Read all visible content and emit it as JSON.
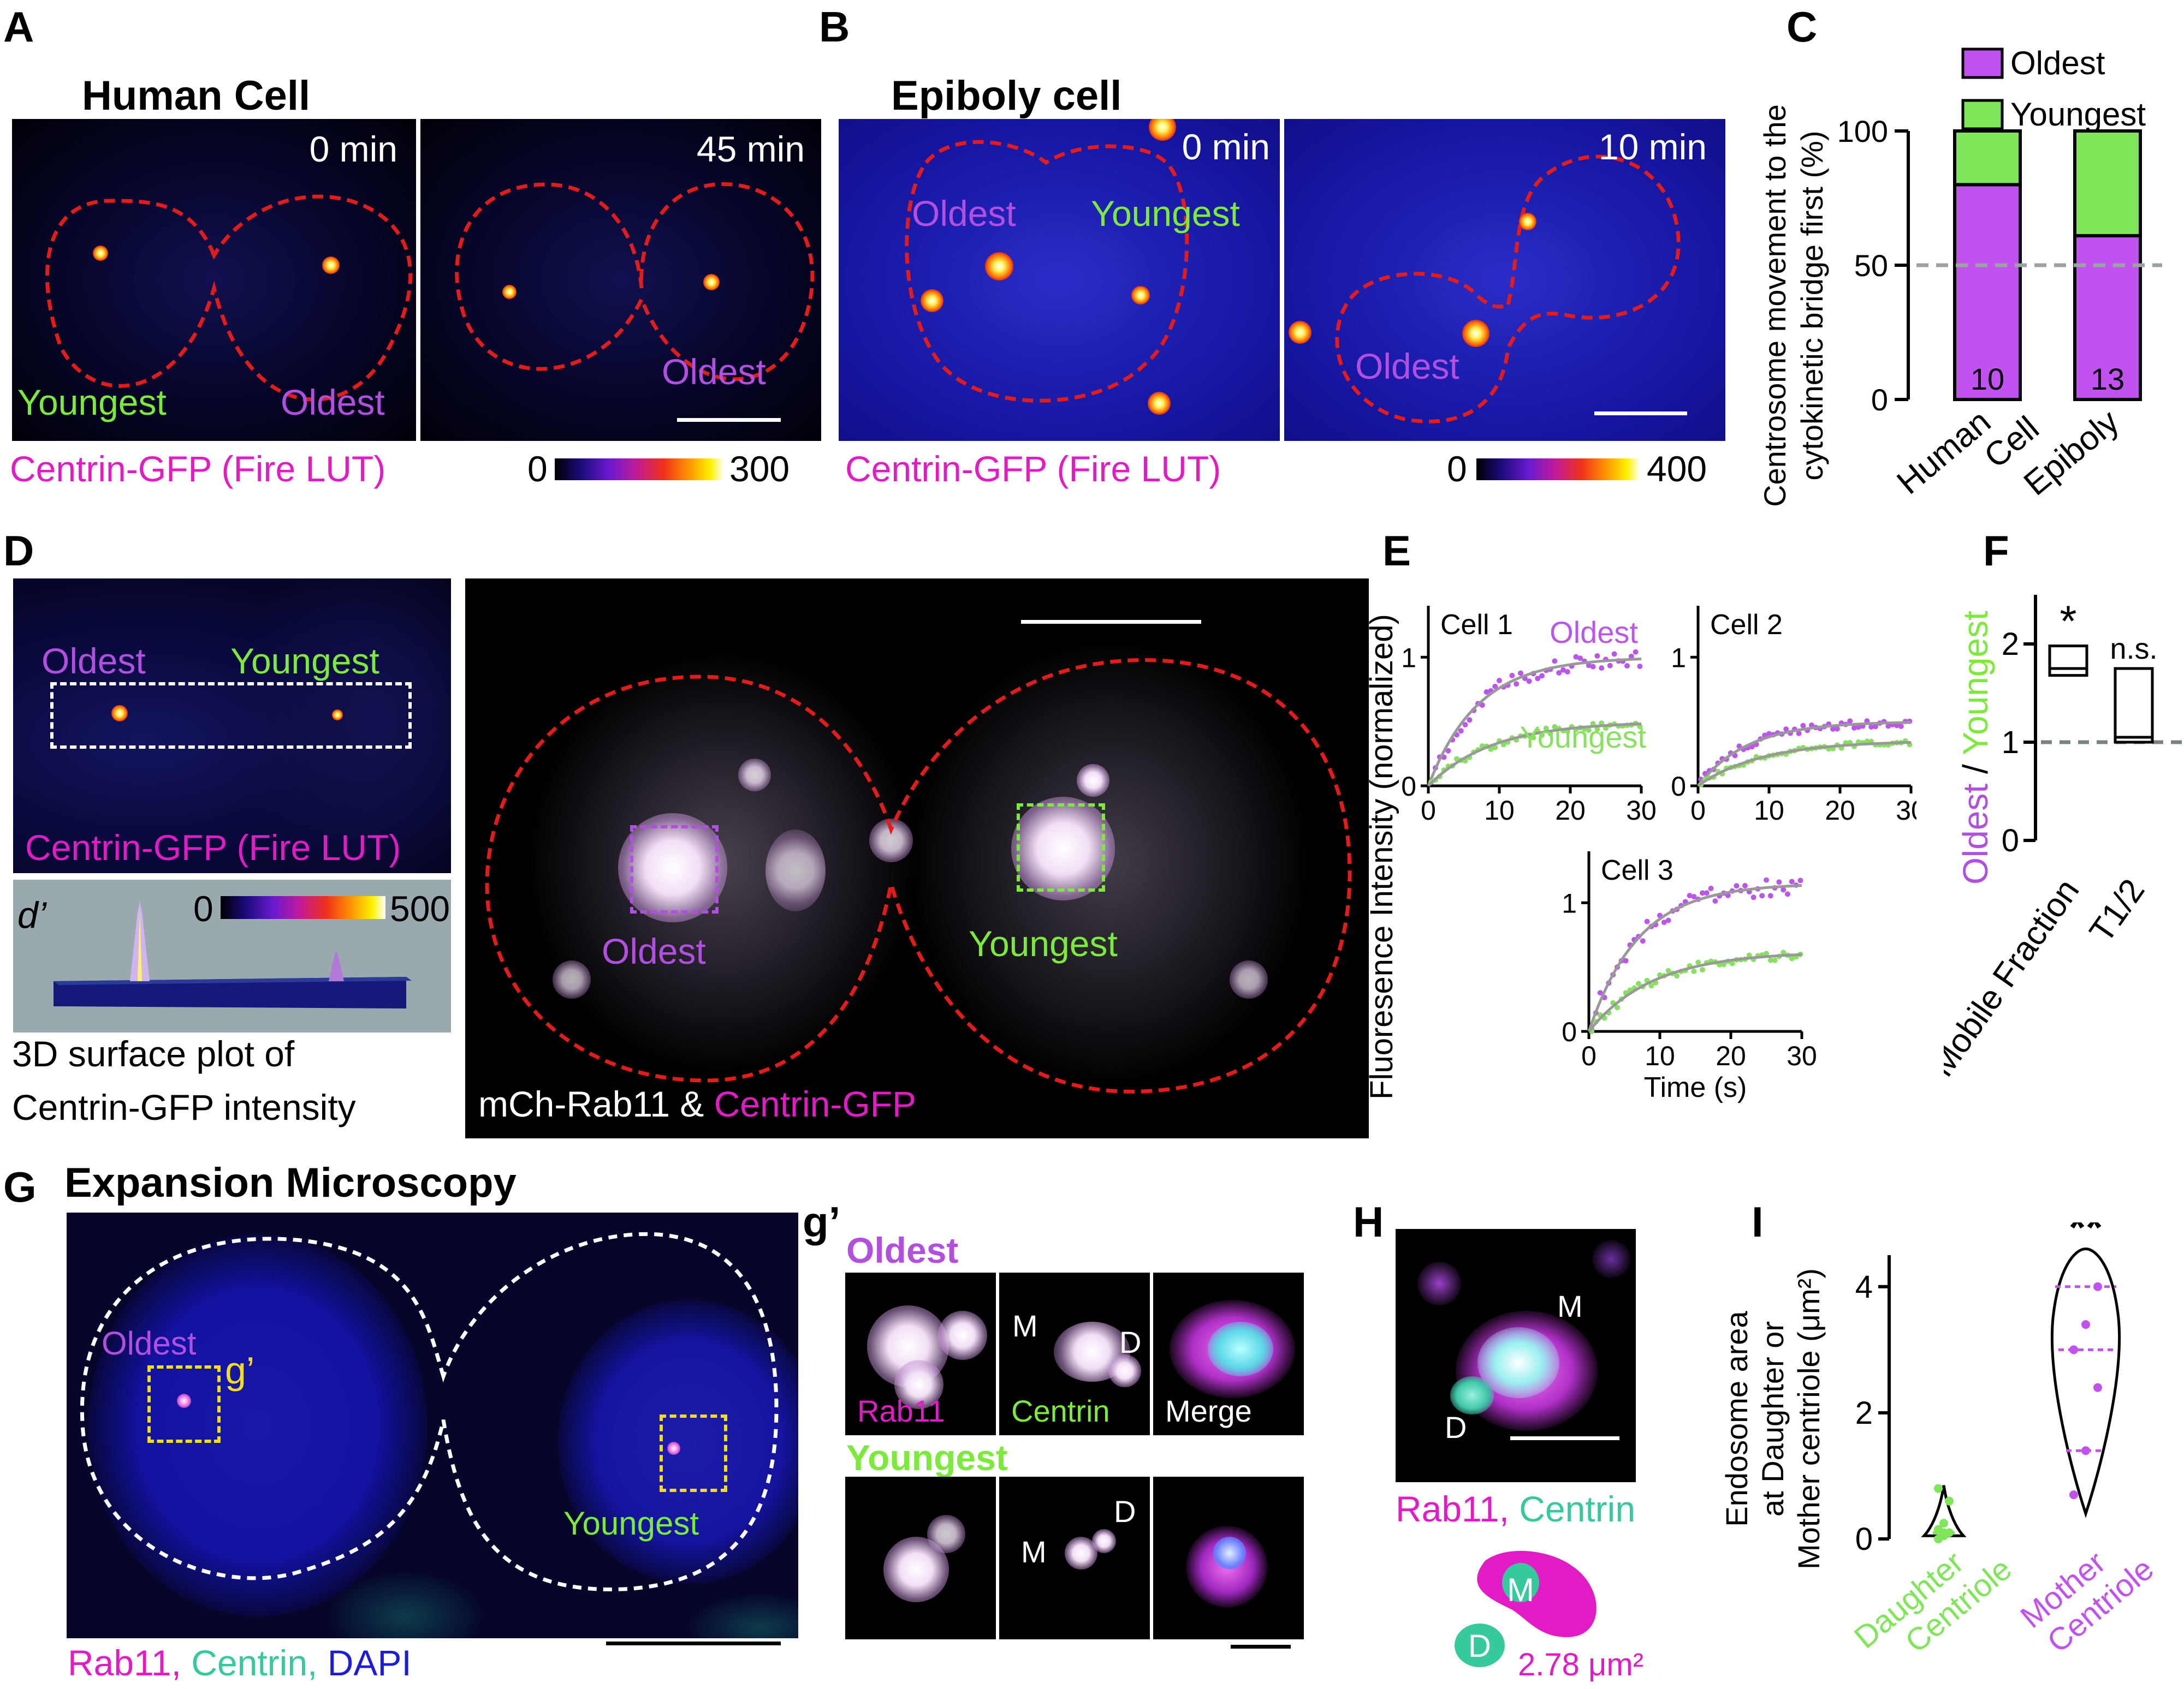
{
  "panels": {
    "A": {
      "letter": "A",
      "title": "Human Cell",
      "times": [
        "0 min",
        "45 min"
      ],
      "youngest": "Youngest",
      "oldest": "Oldest",
      "caption": "Centrin-GFP (Fire LUT)",
      "cbar": {
        "min": "0",
        "max": "300"
      }
    },
    "B": {
      "letter": "B",
      "title": "Epiboly cell",
      "times": [
        "0 min",
        "10 min"
      ],
      "oldest": "Oldest",
      "youngest": "Youngest",
      "caption": "Centrin-GFP (Fire LUT)",
      "cbar": {
        "min": "0",
        "max": "400"
      }
    },
    "C": {
      "letter": "C",
      "ylabel": [
        "Centrosome movement to the",
        "cytokinetic bridge first (%)"
      ],
      "legend": [
        "Oldest",
        "Youngest"
      ],
      "yticks": [
        "0",
        "50",
        "100"
      ]
    },
    "D": {
      "letter": "D",
      "oldest": "Oldest",
      "youngest": "Youngest",
      "caption": "Centrin-GFP (Fire LUT)",
      "sub_letter": "d’",
      "sub_cbar": {
        "min": "0",
        "max": "500"
      },
      "sub_caption": [
        "3D surface plot of",
        "Centrin-GFP intensity"
      ],
      "main_caption_a": "mCh-Rab11 & ",
      "main_caption_b": "Centrin-GFP"
    },
    "E": {
      "letter": "E",
      "ylabel": "Fluoresence Intensity (normalized)",
      "xlabel": "Time (s)",
      "cells": [
        "Cell 1",
        "Cell 2",
        "Cell 3"
      ],
      "oldest": "Oldest",
      "youngest": "Youngest",
      "xticks": [
        "0",
        "10",
        "20",
        "30"
      ],
      "yticks": [
        "0",
        "1"
      ]
    },
    "F": {
      "letter": "F",
      "ylabel_a": "Oldest",
      "ylabel_sep": " / ",
      "ylabel_b": "Youngest",
      "yticks": [
        "0",
        "1",
        "2"
      ],
      "categories": [
        "Mobile Fraction",
        "T1/2"
      ],
      "sig": [
        "*",
        "n.s."
      ]
    },
    "G": {
      "letter": "G",
      "title": "Expansion Microscopy",
      "oldest": "Oldest",
      "youngest": "Youngest",
      "inset": "g’",
      "caption": [
        "Rab11, ",
        "Centrin, ",
        "DAPI"
      ]
    },
    "g": {
      "letter": "g’",
      "oldest": "Oldest",
      "youngest": "Youngest",
      "labels": [
        "Rab11",
        "Centrin",
        "Merge"
      ],
      "m": "M",
      "d": "D"
    },
    "H": {
      "letter": "H",
      "m": "M",
      "d": "D",
      "caption": [
        "Rab11, ",
        "Centrin"
      ],
      "area": "2.78 μm²"
    },
    "I": {
      "letter": "I",
      "ylabel": [
        "Endosome area",
        "at Daughter or",
        "Mother centriole (μm²)"
      ],
      "yticks": [
        "0",
        "2",
        "4"
      ],
      "categories": [
        [
          "Daughter",
          "Centriole"
        ],
        [
          "Mother",
          "Centriole"
        ]
      ],
      "sig": "**"
    }
  },
  "chart_data": [
    {
      "type": "bar",
      "panel": "C",
      "categories": [
        "Human Cell",
        "Epiboly"
      ],
      "series": [
        {
          "name": "Oldest",
          "values": [
            80,
            61
          ]
        },
        {
          "name": "Youngest",
          "values": [
            20,
            39
          ]
        }
      ],
      "stacked": true,
      "n_labels": [
        "10",
        "13"
      ],
      "ylim": [
        0,
        100
      ],
      "reference_line": 50,
      "colors": {
        "Oldest": "#c252f0",
        "Youngest": "#7fe65a",
        "reference": "#9aa2a2"
      }
    },
    {
      "type": "scatter",
      "panel": "E",
      "xlim": [
        0,
        30
      ],
      "ylim": [
        0,
        1.4
      ],
      "plots": [
        {
          "name": "Cell 1",
          "oldest_plateau": 1.0,
          "youngest_plateau": 0.5
        },
        {
          "name": "Cell 2",
          "oldest_plateau": 0.5,
          "youngest_plateau": 0.35
        },
        {
          "name": "Cell 3",
          "oldest_plateau": 1.15,
          "youngest_plateau": 0.62
        }
      ],
      "colors": {
        "Oldest": "#bb55ee",
        "Youngest": "#88e060",
        "fit": "#999999"
      }
    },
    {
      "type": "bar",
      "panel": "F",
      "categories": [
        "Mobile Fraction",
        "T1/2"
      ],
      "boxes": [
        {
          "min": 1.68,
          "median": 1.75,
          "max": 1.98
        },
        {
          "min": 1.0,
          "median": 1.05,
          "max": 1.75
        }
      ],
      "ylim": [
        0,
        2.5
      ],
      "reference_line": 1
    },
    {
      "type": "scatter",
      "panel": "I",
      "categories": [
        "Daughter Centriole",
        "Mother Centriole"
      ],
      "points": [
        [
          0,
          0.05,
          0.1,
          0.15,
          0.25,
          0.6,
          0.8,
          0.1
        ],
        [
          0.7,
          1.4,
          2.4,
          3.0,
          3.4,
          4.0,
          3.0
        ]
      ],
      "medians": [
        0.1,
        3.0
      ],
      "ylim": [
        0,
        4.5
      ],
      "colors": {
        "Daughter": "#7fe65a",
        "Mother": "#c252f0"
      }
    }
  ]
}
